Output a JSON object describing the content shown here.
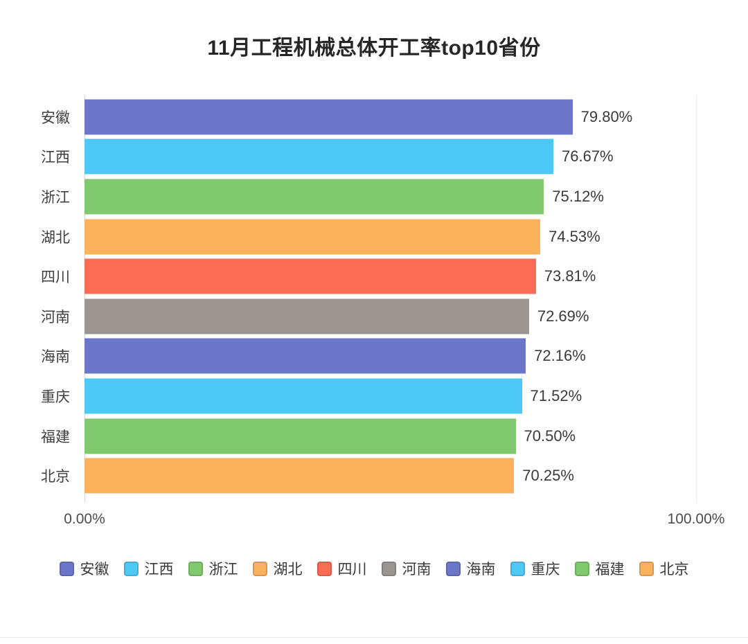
{
  "page": {
    "background": "#ffffff"
  },
  "chart_data": {
    "type": "bar",
    "orientation": "horizontal",
    "title": "11月工程机械总体开工率top10省份",
    "categories": [
      "安徽",
      "江西",
      "浙江",
      "湖北",
      "四川",
      "河南",
      "海南",
      "重庆",
      "福建",
      "北京"
    ],
    "values": [
      79.8,
      76.67,
      75.12,
      74.53,
      73.81,
      72.69,
      72.16,
      71.52,
      70.5,
      70.25
    ],
    "value_labels": [
      "79.80%",
      "76.67%",
      "75.12%",
      "74.53%",
      "73.81%",
      "72.69%",
      "72.16%",
      "71.52%",
      "70.50%",
      "70.25%"
    ],
    "bar_colors": [
      "#6C77C9",
      "#4EC9F5",
      "#81C96E",
      "#FBB25C",
      "#FA6C53",
      "#9A9591",
      "#6C77C9",
      "#4EC9F5",
      "#81C96E",
      "#FBB25C"
    ],
    "xlim": [
      0,
      100
    ],
    "x_tick_labels": [
      "0.00%",
      "100.00%"
    ],
    "gridlines_at": [
      0,
      100
    ],
    "grid": "vertical line at 100% only, y-axis line at 0%",
    "legend": {
      "position": "bottom",
      "items": [
        {
          "label": "安徽",
          "color": "#6C77C9"
        },
        {
          "label": "江西",
          "color": "#4EC9F5"
        },
        {
          "label": "浙江",
          "color": "#81C96E"
        },
        {
          "label": "湖北",
          "color": "#FBB25C"
        },
        {
          "label": "四川",
          "color": "#FA6C53"
        },
        {
          "label": "河南",
          "color": "#9A9591"
        },
        {
          "label": "海南",
          "color": "#6C77C9"
        },
        {
          "label": "重庆",
          "color": "#4EC9F5"
        },
        {
          "label": "福建",
          "color": "#81C96E"
        },
        {
          "label": "北京",
          "color": "#FBB25C"
        }
      ]
    }
  }
}
